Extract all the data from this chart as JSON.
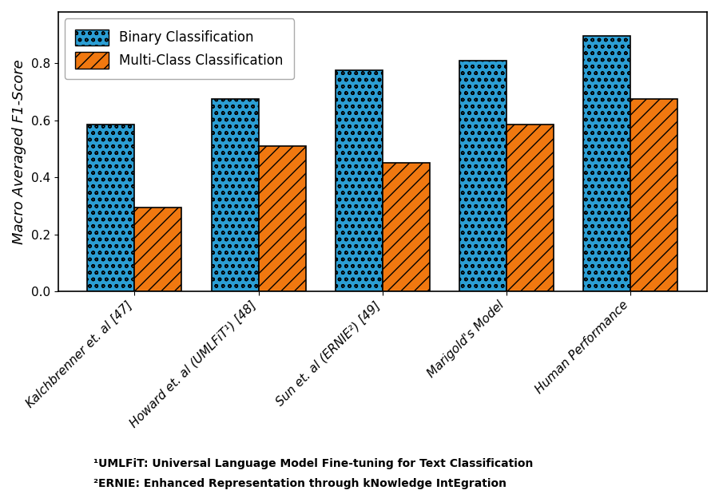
{
  "categories": [
    "Kalchbrenner et. al [47]",
    "Howard et. al (UMLFiT¹) [48]",
    "Sun et. al (ERNIE²) [49]",
    "Marigold's Model",
    "Human Performance"
  ],
  "binary_values": [
    0.585,
    0.675,
    0.775,
    0.81,
    0.895
  ],
  "multiclass_values": [
    0.295,
    0.51,
    0.45,
    0.585,
    0.675
  ],
  "binary_color": "#2B9ED4",
  "multiclass_color": "#F07810",
  "ylabel": "Macro Averaged F1-Score",
  "ylim": [
    0.0,
    0.98
  ],
  "yticks": [
    0.0,
    0.2,
    0.4,
    0.6,
    0.8
  ],
  "legend_binary": "Binary Classification",
  "legend_multiclass": "Multi-Class Classification",
  "footnote1": "¹UMLFiT: Universal Language Model Fine-tuning for Text Classification",
  "footnote2": "²ERNIE: Enhanced Representation through kNowledge IntEgration",
  "bar_width": 0.38,
  "figsize": [
    9.0,
    6.29
  ],
  "dpi": 100
}
